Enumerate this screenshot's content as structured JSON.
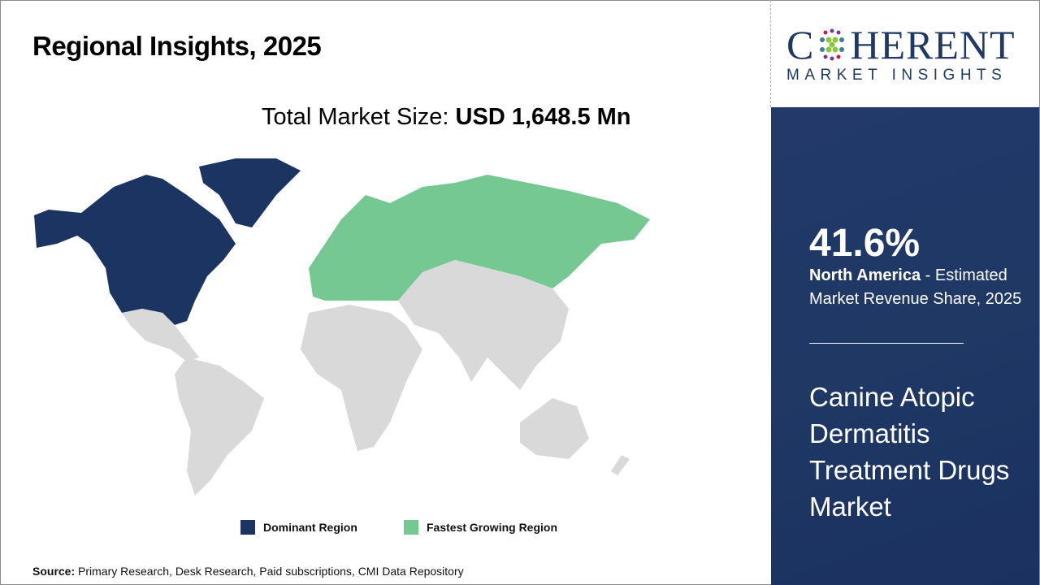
{
  "header": {
    "title": "Regional Insights, 2025",
    "market_label": "Total Market Size: ",
    "market_value": "USD 1,648.5 Mn"
  },
  "legend": [
    {
      "label": "Dominant Region",
      "color": "#1b3461"
    },
    {
      "label": "Fastest Growing Region",
      "color": "#76c893"
    }
  ],
  "map": {
    "dominant_region": "North America",
    "fastest_growing_region": "Europe",
    "other_color": "#d9d9d9"
  },
  "source": {
    "label": "Source:",
    "text": " Primary Research, Desk Research, Paid subscriptions, CMI Data Repository"
  },
  "logo": {
    "main": "COHERENT",
    "sub": "MARKET INSIGHTS"
  },
  "panel": {
    "share": "41.6%",
    "region": "North America",
    "share_desc": " - Estimated Market Revenue Share, 2025",
    "market_name": "Canine Atopic Dermatitis Treatment Drugs Market",
    "bg_color": "#1f3864"
  }
}
